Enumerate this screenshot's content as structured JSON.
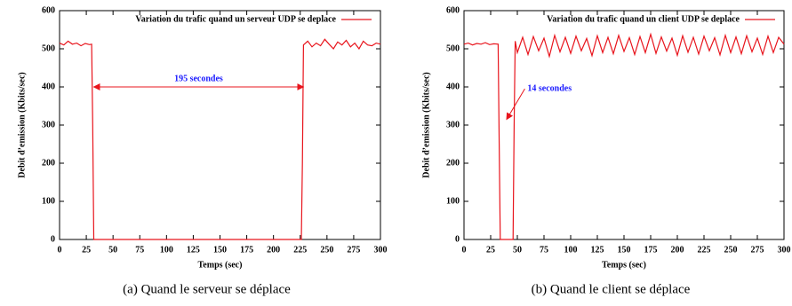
{
  "chart_data": [
    {
      "type": "line",
      "xlabel": "Temps (sec)",
      "ylabel": "Debit d’emission (Kbits/sec)",
      "caption": "(a) Quand le serveur se déplace",
      "xlim": [
        0,
        300
      ],
      "ylim": [
        0,
        600
      ],
      "xticks": [
        0,
        25,
        50,
        75,
        100,
        125,
        150,
        175,
        200,
        225,
        250,
        275,
        300
      ],
      "yticks": [
        0,
        100,
        200,
        300,
        400,
        500,
        600
      ],
      "x": [
        0,
        4,
        8,
        12,
        16,
        20,
        24,
        28,
        30,
        31,
        32,
        40,
        60,
        80,
        100,
        120,
        140,
        160,
        180,
        200,
        220,
        226,
        227,
        228,
        232,
        236,
        240,
        244,
        248,
        252,
        256,
        260,
        264,
        268,
        272,
        276,
        280,
        284,
        288,
        292,
        296,
        300
      ],
      "series": [
        {
          "name": "Variation du trafic quand un serveur UDP se deplace",
          "color": "#e8141c",
          "values": [
            515,
            510,
            520,
            512,
            515,
            508,
            514,
            511,
            512,
            300,
            0,
            0,
            0,
            0,
            0,
            0,
            0,
            0,
            0,
            0,
            0,
            0,
            200,
            510,
            520,
            505,
            515,
            508,
            525,
            512,
            500,
            518,
            510,
            522,
            505,
            515,
            500,
            520,
            510,
            508,
            515,
            512
          ]
        }
      ],
      "annotation": {
        "text": "195 secondes",
        "x": [
          32,
          228
        ],
        "y": [
          400,
          400
        ],
        "color": "#1a1aff"
      }
    },
    {
      "type": "line",
      "xlabel": "Temps (sec)",
      "ylabel": "Debit d’emission (Kbits/sec)",
      "caption": "(b) Quand le client se déplace",
      "xlim": [
        0,
        300
      ],
      "ylim": [
        0,
        600
      ],
      "xticks": [
        0,
        25,
        50,
        75,
        100,
        125,
        150,
        175,
        200,
        225,
        250,
        275,
        300
      ],
      "yticks": [
        0,
        100,
        200,
        300,
        400,
        500,
        600
      ],
      "x": [
        0,
        4,
        8,
        12,
        16,
        20,
        24,
        28,
        32,
        33,
        34,
        46,
        47,
        48,
        50,
        55,
        60,
        65,
        70,
        75,
        80,
        85,
        90,
        95,
        100,
        105,
        110,
        115,
        120,
        125,
        130,
        135,
        140,
        145,
        150,
        155,
        160,
        165,
        170,
        175,
        180,
        185,
        190,
        195,
        200,
        205,
        210,
        215,
        220,
        225,
        230,
        235,
        240,
        245,
        250,
        255,
        260,
        265,
        270,
        275,
        280,
        285,
        290,
        295,
        300
      ],
      "series": [
        {
          "name": "Variation du trafic quand un client UDP se deplace",
          "color": "#e8141c",
          "values": [
            512,
            515,
            510,
            514,
            512,
            516,
            511,
            513,
            512,
            250,
            0,
            0,
            300,
            520,
            490,
            530,
            485,
            532,
            495,
            528,
            480,
            535,
            492,
            530,
            488,
            533,
            495,
            527,
            482,
            534,
            490,
            530,
            487,
            535,
            493,
            529,
            485,
            532,
            490,
            538,
            488,
            531,
            494,
            528,
            483,
            534,
            491,
            530,
            486,
            533,
            495,
            529,
            484,
            535,
            490,
            531,
            487,
            534,
            492,
            528,
            485,
            533,
            490,
            530,
            512
          ]
        }
      ],
      "annotation": {
        "text": "14 secondes",
        "x": [
          57,
          40
        ],
        "y": [
          395,
          315
        ],
        "color": "#1a1aff"
      }
    }
  ]
}
